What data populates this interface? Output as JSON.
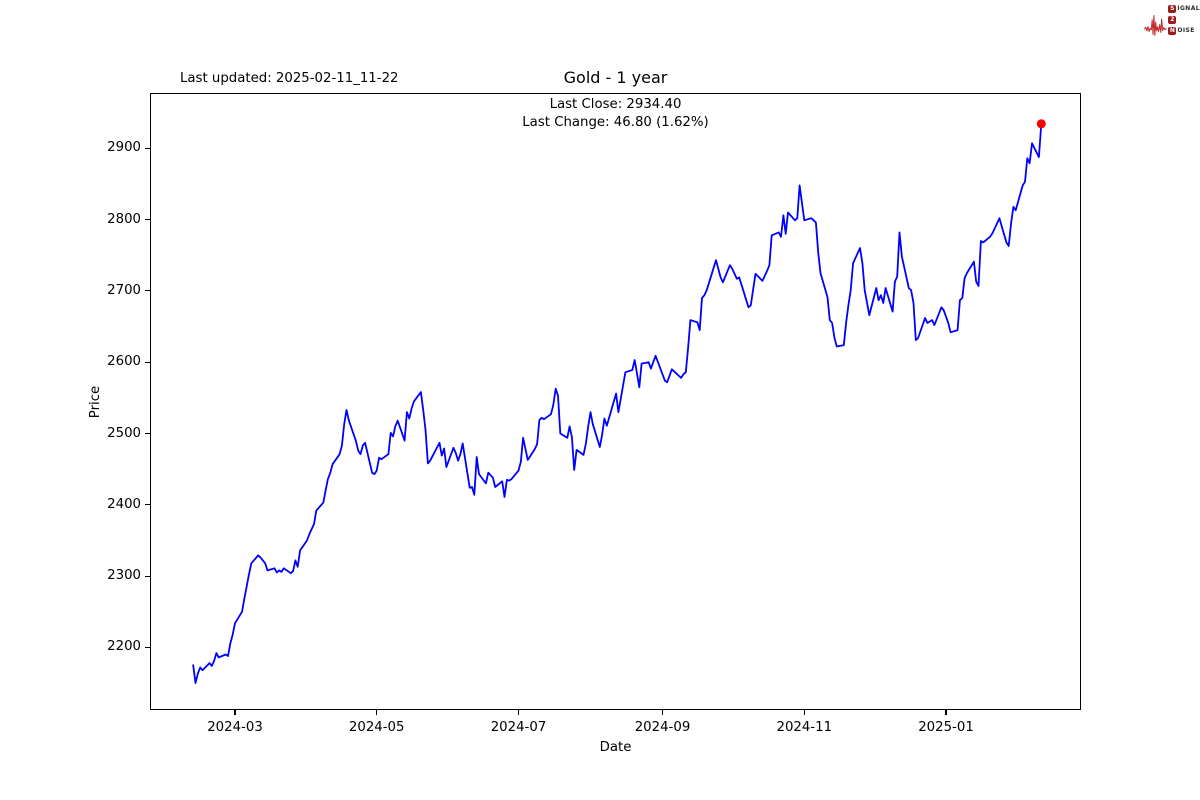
{
  "header": {
    "title": "Gold - 1 year",
    "last_updated": "Last updated: 2025-02-11_11-22"
  },
  "annotation": {
    "line1": "Last Close: 2934.40",
    "line2": "Last Change: 46.80 (1.62%)"
  },
  "logo": {
    "brand_color": "#9b1b1b",
    "wave_color": "#c1272d",
    "rows": [
      {
        "boxed": "S",
        "rest": "IGNAL"
      },
      {
        "boxed": "2",
        "rest": ""
      },
      {
        "boxed": "N",
        "rest": "OISE"
      }
    ]
  },
  "chart_data": {
    "type": "line",
    "title": "Gold - 1 year",
    "xlabel": "Date",
    "ylabel": "Price",
    "x_tick_labels": [
      "2024-03",
      "2024-05",
      "2024-07",
      "2024-09",
      "2024-11",
      "2025-01"
    ],
    "y_ticks": [
      2200,
      2300,
      2400,
      2500,
      2600,
      2700,
      2800,
      2900
    ],
    "ylim": [
      2112,
      2978
    ],
    "xlim": [
      "2024-01-25",
      "2025-02-28"
    ],
    "grid": false,
    "legend": "none",
    "line_color": "#0000ff",
    "marker_color": "#ff0000",
    "last_close": 2934.4,
    "last_change": 46.8,
    "last_change_pct": 1.62,
    "series": [
      {
        "name": "Gold",
        "points": [
          [
            "2024-02-12",
            2175
          ],
          [
            "2024-02-13",
            2150
          ],
          [
            "2024-02-14",
            2163
          ],
          [
            "2024-02-15",
            2172
          ],
          [
            "2024-02-16",
            2168
          ],
          [
            "2024-02-19",
            2178
          ],
          [
            "2024-02-20",
            2174
          ],
          [
            "2024-02-21",
            2181
          ],
          [
            "2024-02-22",
            2192
          ],
          [
            "2024-02-23",
            2186
          ],
          [
            "2024-02-26",
            2190
          ],
          [
            "2024-02-27",
            2188
          ],
          [
            "2024-02-28",
            2206
          ],
          [
            "2024-02-29",
            2218
          ],
          [
            "2024-03-01",
            2234
          ],
          [
            "2024-03-04",
            2250
          ],
          [
            "2024-03-05",
            2268
          ],
          [
            "2024-03-06",
            2285
          ],
          [
            "2024-03-07",
            2302
          ],
          [
            "2024-03-08",
            2318
          ],
          [
            "2024-03-11",
            2329
          ],
          [
            "2024-03-12",
            2326
          ],
          [
            "2024-03-13",
            2322
          ],
          [
            "2024-03-14",
            2318
          ],
          [
            "2024-03-15",
            2308
          ],
          [
            "2024-03-18",
            2311
          ],
          [
            "2024-03-19",
            2305
          ],
          [
            "2024-03-20",
            2308
          ],
          [
            "2024-03-21",
            2306
          ],
          [
            "2024-03-22",
            2311
          ],
          [
            "2024-03-25",
            2304
          ],
          [
            "2024-03-26",
            2307
          ],
          [
            "2024-03-27",
            2322
          ],
          [
            "2024-03-28",
            2313
          ],
          [
            "2024-03-29",
            2336
          ],
          [
            "2024-04-01",
            2350
          ],
          [
            "2024-04-02",
            2359
          ],
          [
            "2024-04-03",
            2366
          ],
          [
            "2024-04-04",
            2373
          ],
          [
            "2024-04-05",
            2392
          ],
          [
            "2024-04-08",
            2403
          ],
          [
            "2024-04-09",
            2420
          ],
          [
            "2024-04-10",
            2436
          ],
          [
            "2024-04-11",
            2445
          ],
          [
            "2024-04-12",
            2457
          ],
          [
            "2024-04-15",
            2471
          ],
          [
            "2024-04-16",
            2483
          ],
          [
            "2024-04-17",
            2513
          ],
          [
            "2024-04-18",
            2533
          ],
          [
            "2024-04-19",
            2518
          ],
          [
            "2024-04-22",
            2490
          ],
          [
            "2024-04-23",
            2476
          ],
          [
            "2024-04-24",
            2471
          ],
          [
            "2024-04-25",
            2483
          ],
          [
            "2024-04-26",
            2487
          ],
          [
            "2024-04-29",
            2445
          ],
          [
            "2024-04-30",
            2443
          ],
          [
            "2024-05-01",
            2448
          ],
          [
            "2024-05-02",
            2466
          ],
          [
            "2024-05-03",
            2464
          ],
          [
            "2024-05-06",
            2471
          ],
          [
            "2024-05-07",
            2501
          ],
          [
            "2024-05-08",
            2496
          ],
          [
            "2024-05-09",
            2510
          ],
          [
            "2024-05-10",
            2518
          ],
          [
            "2024-05-13",
            2490
          ],
          [
            "2024-05-14",
            2530
          ],
          [
            "2024-05-15",
            2521
          ],
          [
            "2024-05-16",
            2535
          ],
          [
            "2024-05-17",
            2545
          ],
          [
            "2024-05-20",
            2558
          ],
          [
            "2024-05-21",
            2533
          ],
          [
            "2024-05-22",
            2505
          ],
          [
            "2024-05-23",
            2458
          ],
          [
            "2024-05-24",
            2462
          ],
          [
            "2024-05-28",
            2487
          ],
          [
            "2024-05-29",
            2469
          ],
          [
            "2024-05-30",
            2479
          ],
          [
            "2024-05-31",
            2453
          ],
          [
            "2024-06-03",
            2480
          ],
          [
            "2024-06-04",
            2473
          ],
          [
            "2024-06-05",
            2462
          ],
          [
            "2024-06-06",
            2471
          ],
          [
            "2024-06-07",
            2486
          ],
          [
            "2024-06-10",
            2424
          ],
          [
            "2024-06-11",
            2425
          ],
          [
            "2024-06-12",
            2414
          ],
          [
            "2024-06-13",
            2467
          ],
          [
            "2024-06-14",
            2443
          ],
          [
            "2024-06-17",
            2430
          ],
          [
            "2024-06-18",
            2445
          ],
          [
            "2024-06-20",
            2438
          ],
          [
            "2024-06-21",
            2425
          ],
          [
            "2024-06-24",
            2433
          ],
          [
            "2024-06-25",
            2411
          ],
          [
            "2024-06-26",
            2435
          ],
          [
            "2024-06-27",
            2434
          ],
          [
            "2024-06-28",
            2436
          ],
          [
            "2024-07-01",
            2448
          ],
          [
            "2024-07-02",
            2460
          ],
          [
            "2024-07-03",
            2494
          ],
          [
            "2024-07-05",
            2463
          ],
          [
            "2024-07-08",
            2478
          ],
          [
            "2024-07-09",
            2485
          ],
          [
            "2024-07-10",
            2519
          ],
          [
            "2024-07-11",
            2522
          ],
          [
            "2024-07-12",
            2520
          ],
          [
            "2024-07-15",
            2527
          ],
          [
            "2024-07-16",
            2540
          ],
          [
            "2024-07-17",
            2563
          ],
          [
            "2024-07-18",
            2553
          ],
          [
            "2024-07-19",
            2500
          ],
          [
            "2024-07-22",
            2494
          ],
          [
            "2024-07-23",
            2510
          ],
          [
            "2024-07-24",
            2495
          ],
          [
            "2024-07-25",
            2449
          ],
          [
            "2024-07-26",
            2477
          ],
          [
            "2024-07-29",
            2470
          ],
          [
            "2024-07-30",
            2486
          ],
          [
            "2024-07-31",
            2510
          ],
          [
            "2024-08-01",
            2530
          ],
          [
            "2024-08-02",
            2513
          ],
          [
            "2024-08-05",
            2481
          ],
          [
            "2024-08-06",
            2498
          ],
          [
            "2024-08-07",
            2521
          ],
          [
            "2024-08-08",
            2511
          ],
          [
            "2024-08-12",
            2556
          ],
          [
            "2024-08-13",
            2530
          ],
          [
            "2024-08-16",
            2586
          ],
          [
            "2024-08-19",
            2589
          ],
          [
            "2024-08-20",
            2603
          ],
          [
            "2024-08-22",
            2565
          ],
          [
            "2024-08-23",
            2598
          ],
          [
            "2024-08-26",
            2600
          ],
          [
            "2024-08-27",
            2591
          ],
          [
            "2024-08-29",
            2609
          ],
          [
            "2024-09-02",
            2574
          ],
          [
            "2024-09-03",
            2572
          ],
          [
            "2024-09-05",
            2590
          ],
          [
            "2024-09-09",
            2578
          ],
          [
            "2024-09-10",
            2583
          ],
          [
            "2024-09-11",
            2586
          ],
          [
            "2024-09-12",
            2620
          ],
          [
            "2024-09-13",
            2659
          ],
          [
            "2024-09-16",
            2656
          ],
          [
            "2024-09-17",
            2645
          ],
          [
            "2024-09-18",
            2690
          ],
          [
            "2024-09-19",
            2694
          ],
          [
            "2024-09-20",
            2701
          ],
          [
            "2024-09-24",
            2743
          ],
          [
            "2024-09-26",
            2719
          ],
          [
            "2024-09-27",
            2712
          ],
          [
            "2024-09-30",
            2736
          ],
          [
            "2024-10-01",
            2731
          ],
          [
            "2024-10-03",
            2717
          ],
          [
            "2024-10-04",
            2719
          ],
          [
            "2024-10-08",
            2677
          ],
          [
            "2024-10-09",
            2680
          ],
          [
            "2024-10-11",
            2724
          ],
          [
            "2024-10-14",
            2714
          ],
          [
            "2024-10-16",
            2728
          ],
          [
            "2024-10-17",
            2736
          ],
          [
            "2024-10-18",
            2778
          ],
          [
            "2024-10-21",
            2782
          ],
          [
            "2024-10-22",
            2776
          ],
          [
            "2024-10-23",
            2806
          ],
          [
            "2024-10-24",
            2780
          ],
          [
            "2024-10-25",
            2810
          ],
          [
            "2024-10-28",
            2799
          ],
          [
            "2024-10-29",
            2802
          ],
          [
            "2024-10-30",
            2848
          ],
          [
            "2024-10-31",
            2824
          ],
          [
            "2024-11-01",
            2799
          ],
          [
            "2024-11-04",
            2802
          ],
          [
            "2024-11-05",
            2799
          ],
          [
            "2024-11-06",
            2796
          ],
          [
            "2024-11-07",
            2754
          ],
          [
            "2024-11-08",
            2725
          ],
          [
            "2024-11-11",
            2691
          ],
          [
            "2024-11-12",
            2659
          ],
          [
            "2024-11-13",
            2655
          ],
          [
            "2024-11-14",
            2634
          ],
          [
            "2024-11-15",
            2622
          ],
          [
            "2024-11-18",
            2624
          ],
          [
            "2024-11-19",
            2655
          ],
          [
            "2024-11-20",
            2680
          ],
          [
            "2024-11-21",
            2701
          ],
          [
            "2024-11-22",
            2739
          ],
          [
            "2024-11-25",
            2760
          ],
          [
            "2024-11-26",
            2739
          ],
          [
            "2024-11-27",
            2701
          ],
          [
            "2024-11-29",
            2666
          ],
          [
            "2024-12-02",
            2704
          ],
          [
            "2024-12-03",
            2687
          ],
          [
            "2024-12-04",
            2694
          ],
          [
            "2024-12-05",
            2683
          ],
          [
            "2024-12-06",
            2704
          ],
          [
            "2024-12-09",
            2671
          ],
          [
            "2024-12-10",
            2713
          ],
          [
            "2024-12-11",
            2720
          ],
          [
            "2024-12-12",
            2782
          ],
          [
            "2024-12-13",
            2748
          ],
          [
            "2024-12-16",
            2704
          ],
          [
            "2024-12-17",
            2701
          ],
          [
            "2024-12-18",
            2683
          ],
          [
            "2024-12-19",
            2631
          ],
          [
            "2024-12-20",
            2634
          ],
          [
            "2024-12-23",
            2662
          ],
          [
            "2024-12-24",
            2655
          ],
          [
            "2024-12-26",
            2659
          ],
          [
            "2024-12-27",
            2652
          ],
          [
            "2024-12-30",
            2677
          ],
          [
            "2024-12-31",
            2673
          ],
          [
            "2025-01-02",
            2655
          ],
          [
            "2025-01-03",
            2642
          ],
          [
            "2025-01-06",
            2645
          ],
          [
            "2025-01-07",
            2687
          ],
          [
            "2025-01-08",
            2690
          ],
          [
            "2025-01-09",
            2718
          ],
          [
            "2025-01-10",
            2725
          ],
          [
            "2025-01-13",
            2741
          ],
          [
            "2025-01-14",
            2713
          ],
          [
            "2025-01-15",
            2707
          ],
          [
            "2025-01-16",
            2770
          ],
          [
            "2025-01-17",
            2768
          ],
          [
            "2025-01-20",
            2776
          ],
          [
            "2025-01-21",
            2781
          ],
          [
            "2025-01-22",
            2788
          ],
          [
            "2025-01-23",
            2795
          ],
          [
            "2025-01-24",
            2802
          ],
          [
            "2025-01-27",
            2768
          ],
          [
            "2025-01-28",
            2763
          ],
          [
            "2025-01-29",
            2795
          ],
          [
            "2025-01-30",
            2818
          ],
          [
            "2025-01-31",
            2813
          ],
          [
            "2025-02-03",
            2848
          ],
          [
            "2025-02-04",
            2853
          ],
          [
            "2025-02-05",
            2886
          ],
          [
            "2025-02-06",
            2879
          ],
          [
            "2025-02-07",
            2907
          ],
          [
            "2025-02-10",
            2887.6
          ],
          [
            "2025-02-11",
            2934.4
          ]
        ]
      }
    ]
  }
}
